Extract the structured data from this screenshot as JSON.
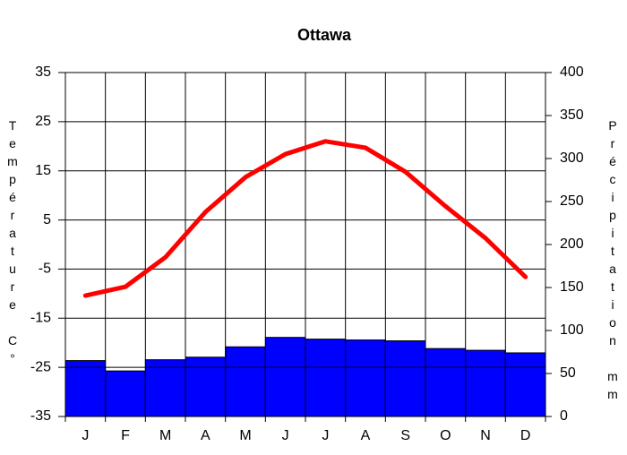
{
  "chart_data": {
    "type": "climate",
    "title": "Ottawa",
    "y_label": "Température C°",
    "y2_label": "Précipitation mm",
    "categories": [
      "J",
      "F",
      "M",
      "A",
      "M",
      "J",
      "J",
      "A",
      "S",
      "O",
      "N",
      "D"
    ],
    "series": [
      {
        "name": "Température",
        "type": "line",
        "color": "#ff0000",
        "values": [
          -10.4,
          -8.6,
          -2.6,
          6.6,
          13.7,
          18.4,
          21.0,
          19.7,
          14.8,
          7.8,
          1.3,
          -6.6
        ]
      },
      {
        "name": "Précipitation",
        "type": "bar",
        "axis": "y2",
        "color": "#0000ff",
        "values": [
          65,
          53,
          66,
          69,
          81,
          92,
          90,
          89,
          88,
          79,
          77,
          74
        ]
      }
    ],
    "ylim": [
      -35,
      35
    ],
    "yticks": [
      -35,
      -25,
      -15,
      -5,
      5,
      15,
      25,
      35
    ],
    "y2lim": [
      0,
      400
    ],
    "y2ticks": [
      0,
      50,
      100,
      150,
      200,
      250,
      300,
      350,
      400
    ],
    "grid": true
  }
}
